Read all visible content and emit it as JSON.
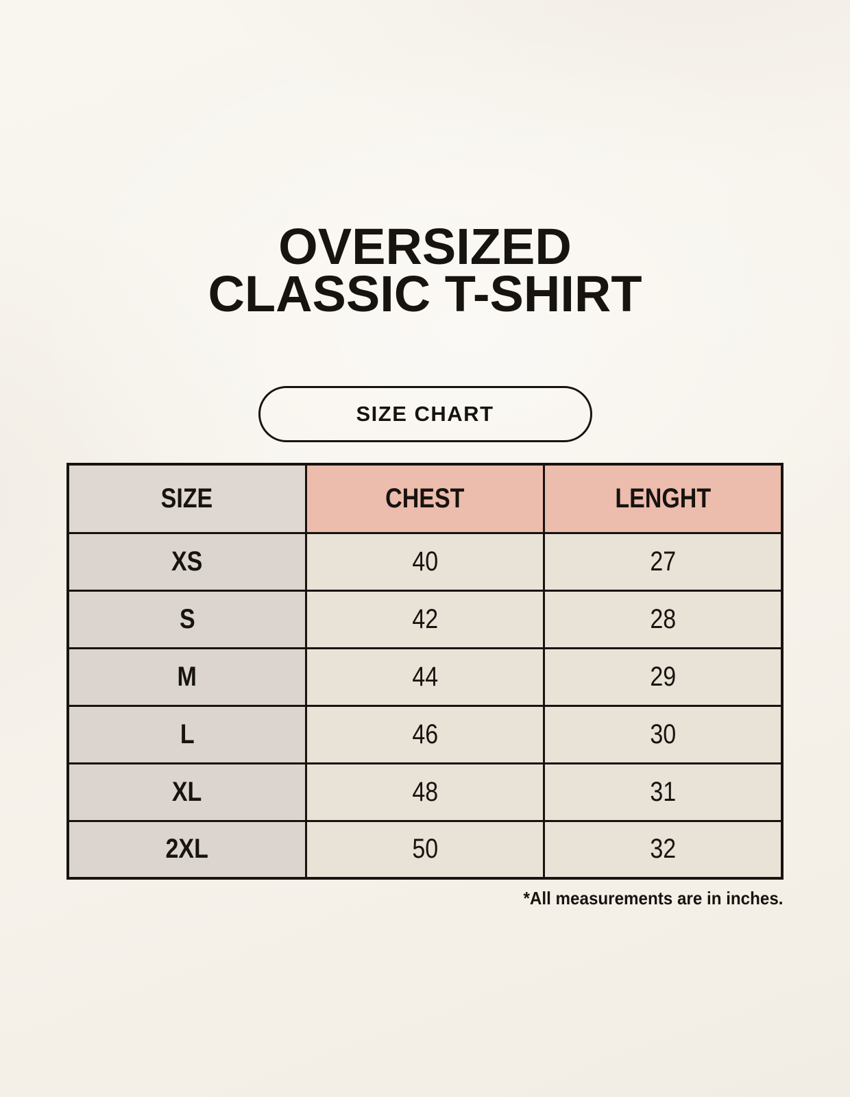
{
  "title": {
    "line1": "OVERSIZED",
    "line2": "CLASSIC T-SHIRT"
  },
  "size_chart_button": {
    "label": "SIZE CHART"
  },
  "chart_data": {
    "type": "table",
    "title": "OVERSIZED CLASSIC T-SHIRT",
    "columns": [
      "SIZE",
      "CHEST",
      "LENGHT"
    ],
    "rows": [
      [
        "XS",
        "40",
        "27"
      ],
      [
        "S",
        "42",
        "28"
      ],
      [
        "M",
        "44",
        "29"
      ],
      [
        "L",
        "46",
        "30"
      ],
      [
        "XL",
        "48",
        "31"
      ],
      [
        "2XL",
        "50",
        "32"
      ]
    ],
    "footnote": "*All measurements are in inches."
  },
  "colors": {
    "text_color": "#17130f",
    "border_color": "#17130f",
    "header_size_bg": "#ded7d2",
    "header_measure_bg": "#ecbcad",
    "body_size_bg": "#dcd5cf",
    "body_measure_bg": "#e9e2d7",
    "page_bg": "#f7f3ec"
  }
}
